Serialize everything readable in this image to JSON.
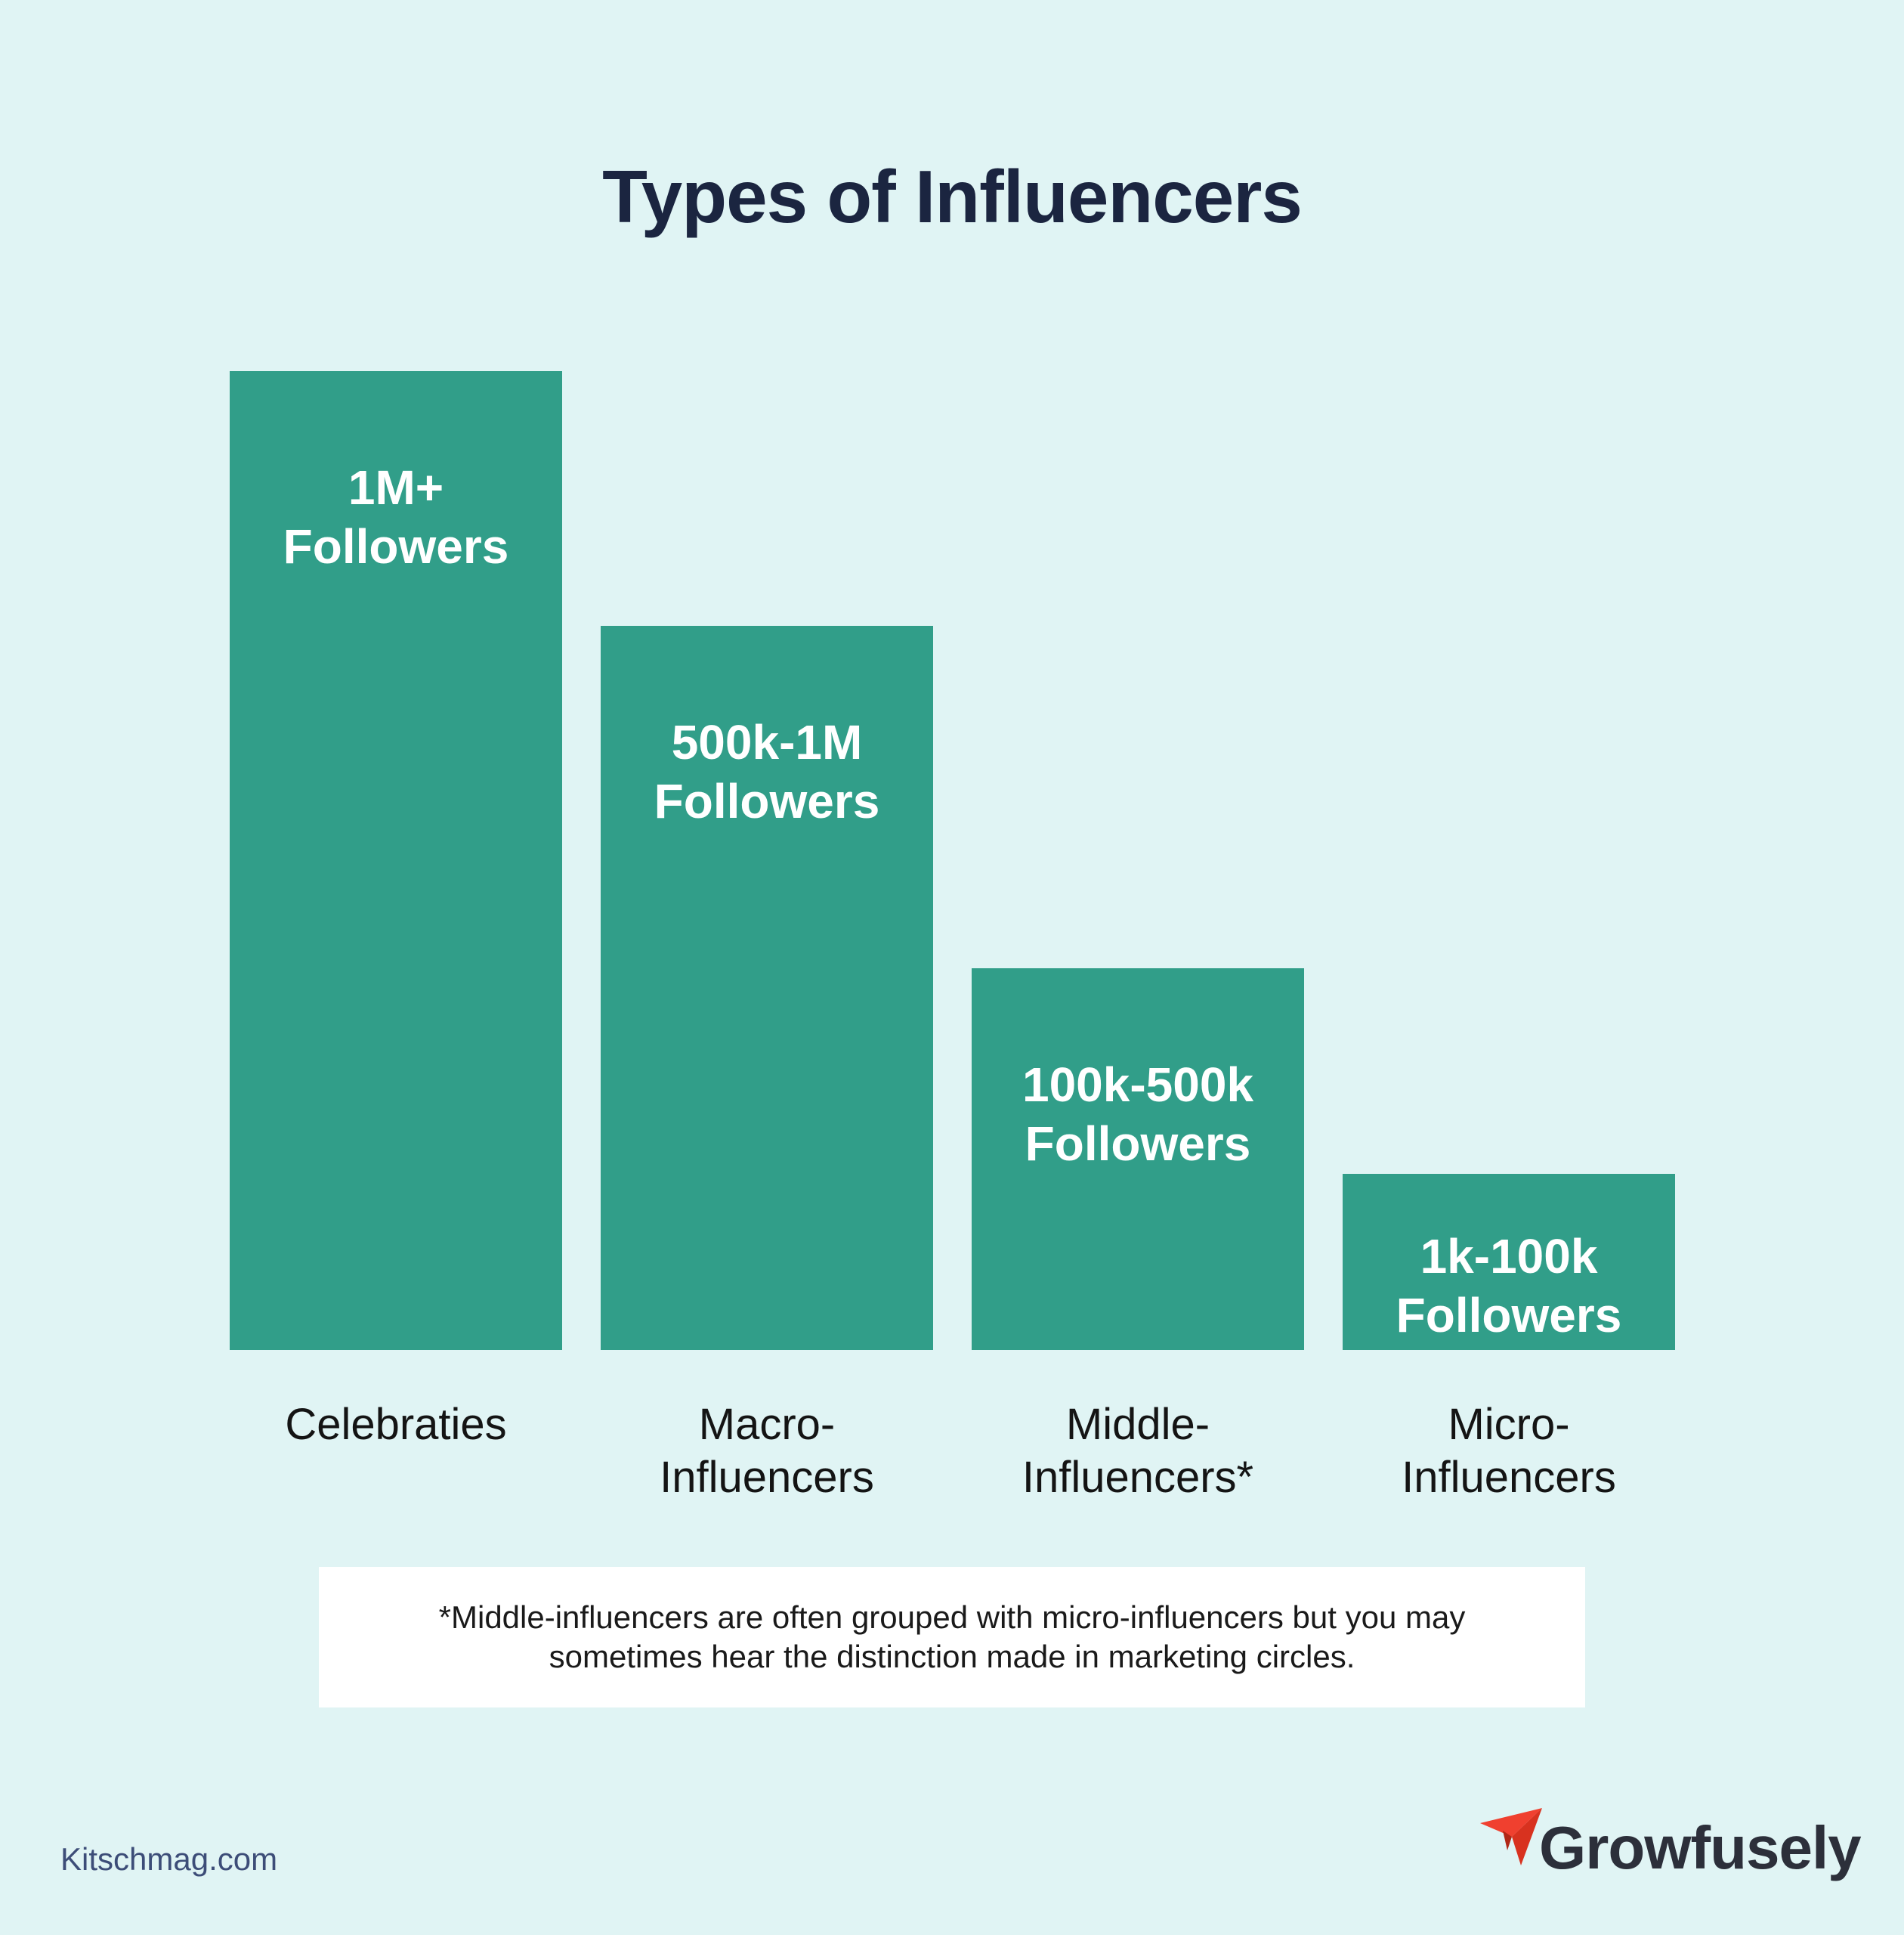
{
  "chart_data": {
    "type": "bar",
    "title": "Types of Influencers",
    "categories": [
      [
        "Celebraties"
      ],
      [
        "Macro-",
        "Influencers"
      ],
      [
        "Middle-",
        "Influencers*"
      ],
      [
        "Micro-",
        "Influencers"
      ]
    ],
    "bar_labels": [
      [
        "1M+",
        "Followers"
      ],
      [
        "500k-1M",
        "Followers"
      ],
      [
        "100k-500k",
        "Followers"
      ],
      [
        "1k-100k",
        "Followers"
      ]
    ],
    "values": [
      100,
      74,
      39,
      18
    ],
    "ylim": [
      0,
      100
    ],
    "grid": false,
    "legend": "none",
    "colors": {
      "bar": "#319e89"
    }
  },
  "note": {
    "line1": "*Middle-influencers are often grouped with micro-influencers but you may",
    "line2": "sometimes hear the distinction made in marketing circles."
  },
  "source": "Kitschmag.com",
  "brand": {
    "name": "Growfusely",
    "icon": "paper-plane-icon",
    "icon_color": "#f0402f"
  }
}
